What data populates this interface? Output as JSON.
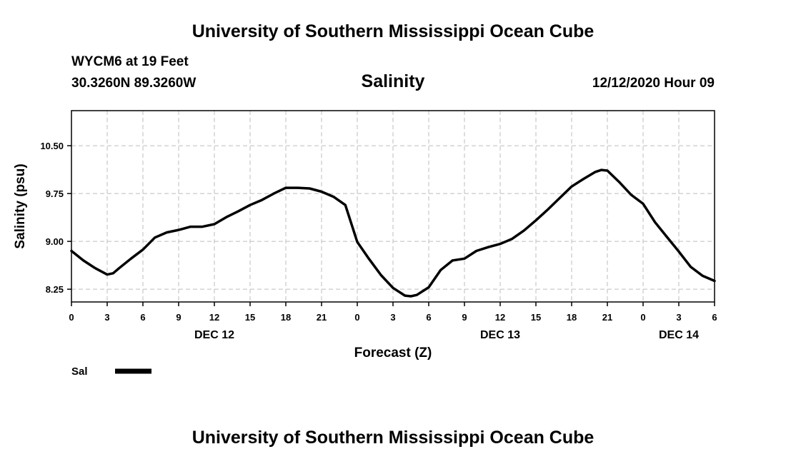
{
  "header": {
    "title": "University of Southern Mississippi Ocean Cube",
    "station": "WYCM6 at 19 Feet",
    "coordinates": "30.3260N 89.3260W",
    "issued": "12/12/2020 Hour 09"
  },
  "footer": {
    "title": "University of Southern Mississippi Ocean Cube"
  },
  "chart_data": {
    "type": "line",
    "title": "Salinity",
    "xlabel": "Forecast (Z)",
    "ylabel": "Salinity (psu)",
    "xlim": [
      0,
      54
    ],
    "ylim": [
      8.05,
      11.05
    ],
    "yticks": [
      8.25,
      9.0,
      9.75,
      10.5
    ],
    "ytick_labels": [
      "8.25",
      "9.00",
      "9.75",
      "10.50"
    ],
    "xtick_hours": [
      0,
      3,
      6,
      9,
      12,
      15,
      18,
      21,
      24,
      27,
      30,
      33,
      36,
      39,
      42,
      45,
      48,
      51,
      54
    ],
    "xtick_labels": [
      "0",
      "3",
      "6",
      "9",
      "12",
      "15",
      "18",
      "21",
      "0",
      "3",
      "6",
      "9",
      "12",
      "15",
      "18",
      "21",
      "0",
      "3",
      "6"
    ],
    "day_labels": [
      {
        "hour": 12,
        "label": "DEC 12"
      },
      {
        "hour": 36,
        "label": "DEC 13"
      },
      {
        "hour": 51,
        "label": "DEC 14"
      }
    ],
    "grid": true,
    "legend": {
      "position": "bottom-left"
    },
    "series": [
      {
        "name": "Sal",
        "color": "#000000",
        "x": [
          0,
          1,
          2,
          3,
          3.5,
          4,
          5,
          6,
          7,
          8,
          9,
          10,
          11,
          12,
          13,
          14,
          15,
          16,
          17,
          18,
          19,
          20,
          21,
          22,
          23,
          24,
          25,
          26,
          27,
          28,
          28.5,
          29,
          30,
          31,
          32,
          33,
          34,
          35,
          36,
          37,
          38,
          39,
          40,
          41,
          42,
          43,
          44,
          44.5,
          45,
          46,
          47,
          48,
          49,
          50,
          51,
          52,
          53,
          54
        ],
        "values": [
          8.85,
          8.7,
          8.58,
          8.48,
          8.5,
          8.58,
          8.73,
          8.87,
          9.06,
          9.14,
          9.18,
          9.23,
          9.23,
          9.27,
          9.38,
          9.47,
          9.57,
          9.65,
          9.75,
          9.84,
          9.84,
          9.83,
          9.78,
          9.7,
          9.57,
          8.99,
          8.72,
          8.47,
          8.27,
          8.15,
          8.14,
          8.16,
          8.28,
          8.55,
          8.7,
          8.73,
          8.85,
          8.91,
          8.96,
          9.04,
          9.17,
          9.33,
          9.5,
          9.68,
          9.86,
          9.98,
          10.09,
          10.12,
          10.11,
          9.93,
          9.73,
          9.59,
          9.3,
          9.07,
          8.84,
          8.6,
          8.46,
          8.38
        ]
      }
    ]
  }
}
